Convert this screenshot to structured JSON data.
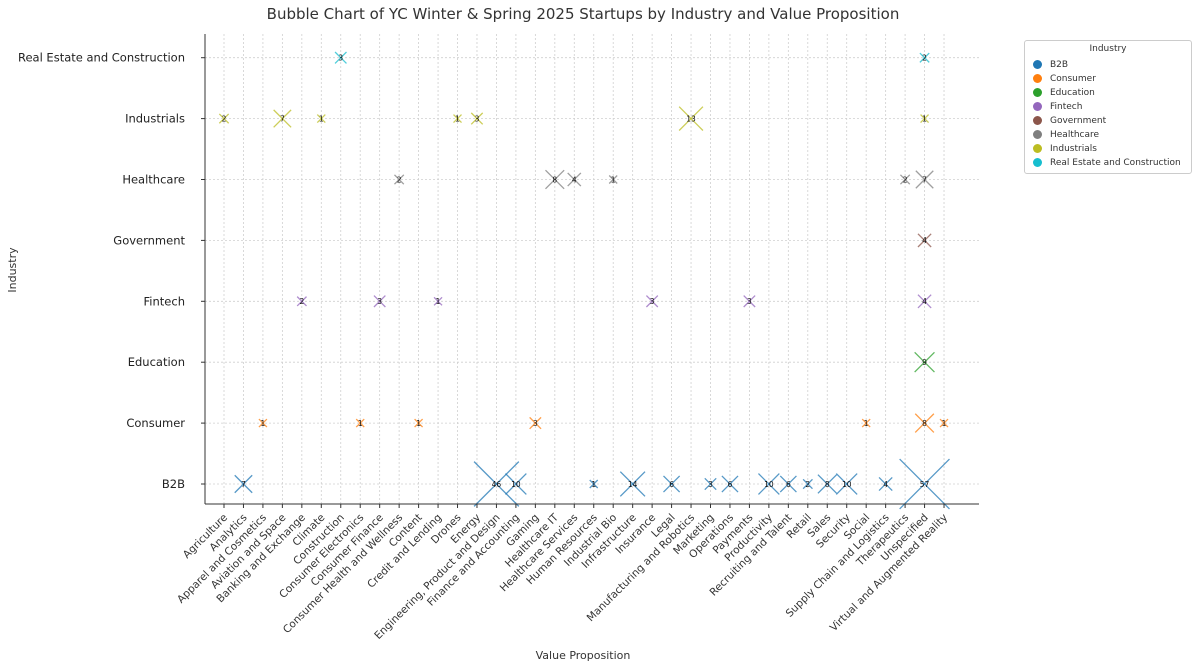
{
  "chart_data": {
    "type": "scatter",
    "title": "Bubble Chart of YC Winter & Spring 2025 Startups by Industry and Value Proposition",
    "xlabel": "Value Proposition",
    "ylabel": "Industry",
    "grid": true,
    "legend": {
      "title": "Industry",
      "placement": "outside-top-right",
      "entries": [
        {
          "name": "B2B",
          "color": "#1f77b4"
        },
        {
          "name": "Consumer",
          "color": "#ff7f0e"
        },
        {
          "name": "Education",
          "color": "#2ca02c"
        },
        {
          "name": "Fintech",
          "color": "#9467bd"
        },
        {
          "name": "Government",
          "color": "#8c564b"
        },
        {
          "name": "Healthcare",
          "color": "#7f7f7f"
        },
        {
          "name": "Industrials",
          "color": "#bcbd22"
        },
        {
          "name": "Real Estate and Construction",
          "color": "#17becf"
        }
      ]
    },
    "industries": [
      "B2B",
      "Consumer",
      "Education",
      "Fintech",
      "Government",
      "Healthcare",
      "Industrials",
      "Real Estate and Construction"
    ],
    "value_propositions": [
      "Agriculture",
      "Analytics",
      "Apparel and Cosmetics",
      "Aviation and Space",
      "Banking and Exchange",
      "Climate",
      "Construction",
      "Consumer Electronics",
      "Consumer Finance",
      "Consumer Health and Wellness",
      "Content",
      "Credit and Lending",
      "Drones",
      "Energy",
      "Engineering, Product and Design",
      "Finance and Accounting",
      "Gaming",
      "Healthcare IT",
      "Healthcare Services",
      "Human Resources",
      "Industrial Bio",
      "Infrastructure",
      "Insurance",
      "Legal",
      "Manufacturing and Robotics",
      "Marketing",
      "Operations",
      "Payments",
      "Productivity",
      "Recruiting and Talent",
      "Retail",
      "Sales",
      "Security",
      "Social",
      "Supply Chain and Logistics",
      "Therapeutics",
      "Unspecified",
      "Virtual and Augmented Reality"
    ],
    "points": [
      {
        "industry": "B2B",
        "vp": "Analytics",
        "count": 7
      },
      {
        "industry": "B2B",
        "vp": "Engineering, Product and Design",
        "count": 46
      },
      {
        "industry": "B2B",
        "vp": "Finance and Accounting",
        "count": 10
      },
      {
        "industry": "B2B",
        "vp": "Human Resources",
        "count": 1
      },
      {
        "industry": "B2B",
        "vp": "Infrastructure",
        "count": 14
      },
      {
        "industry": "B2B",
        "vp": "Legal",
        "count": 6
      },
      {
        "industry": "B2B",
        "vp": "Marketing",
        "count": 3
      },
      {
        "industry": "B2B",
        "vp": "Operations",
        "count": 6
      },
      {
        "industry": "B2B",
        "vp": "Productivity",
        "count": 10
      },
      {
        "industry": "B2B",
        "vp": "Recruiting and Talent",
        "count": 6
      },
      {
        "industry": "B2B",
        "vp": "Retail",
        "count": 2
      },
      {
        "industry": "B2B",
        "vp": "Sales",
        "count": 8
      },
      {
        "industry": "B2B",
        "vp": "Security",
        "count": 10
      },
      {
        "industry": "B2B",
        "vp": "Supply Chain and Logistics",
        "count": 4
      },
      {
        "industry": "B2B",
        "vp": "Unspecified",
        "count": 57
      },
      {
        "industry": "Consumer",
        "vp": "Apparel and Cosmetics",
        "count": 1
      },
      {
        "industry": "Consumer",
        "vp": "Consumer Electronics",
        "count": 1
      },
      {
        "industry": "Consumer",
        "vp": "Content",
        "count": 1
      },
      {
        "industry": "Consumer",
        "vp": "Gaming",
        "count": 3
      },
      {
        "industry": "Consumer",
        "vp": "Social",
        "count": 1
      },
      {
        "industry": "Consumer",
        "vp": "Unspecified",
        "count": 8
      },
      {
        "industry": "Consumer",
        "vp": "Virtual and Augmented Reality",
        "count": 1
      },
      {
        "industry": "Education",
        "vp": "Unspecified",
        "count": 9
      },
      {
        "industry": "Fintech",
        "vp": "Banking and Exchange",
        "count": 2
      },
      {
        "industry": "Fintech",
        "vp": "Consumer Finance",
        "count": 3
      },
      {
        "industry": "Fintech",
        "vp": "Credit and Lending",
        "count": 1
      },
      {
        "industry": "Fintech",
        "vp": "Insurance",
        "count": 3
      },
      {
        "industry": "Fintech",
        "vp": "Payments",
        "count": 3
      },
      {
        "industry": "Fintech",
        "vp": "Unspecified",
        "count": 4
      },
      {
        "industry": "Government",
        "vp": "Unspecified",
        "count": 4
      },
      {
        "industry": "Healthcare",
        "vp": "Consumer Health and Wellness",
        "count": 2
      },
      {
        "industry": "Healthcare",
        "vp": "Healthcare IT",
        "count": 8
      },
      {
        "industry": "Healthcare",
        "vp": "Healthcare Services",
        "count": 4
      },
      {
        "industry": "Healthcare",
        "vp": "Industrial Bio",
        "count": 1
      },
      {
        "industry": "Healthcare",
        "vp": "Therapeutics",
        "count": 2
      },
      {
        "industry": "Healthcare",
        "vp": "Unspecified",
        "count": 7
      },
      {
        "industry": "Industrials",
        "vp": "Agriculture",
        "count": 2
      },
      {
        "industry": "Industrials",
        "vp": "Aviation and Space",
        "count": 7
      },
      {
        "industry": "Industrials",
        "vp": "Climate",
        "count": 1
      },
      {
        "industry": "Industrials",
        "vp": "Drones",
        "count": 1
      },
      {
        "industry": "Industrials",
        "vp": "Energy",
        "count": 3
      },
      {
        "industry": "Industrials",
        "vp": "Manufacturing and Robotics",
        "count": 13
      },
      {
        "industry": "Industrials",
        "vp": "Unspecified",
        "count": 1
      },
      {
        "industry": "Real Estate and Construction",
        "vp": "Construction",
        "count": 3
      },
      {
        "industry": "Real Estate and Construction",
        "vp": "Unspecified",
        "count": 2
      }
    ]
  }
}
